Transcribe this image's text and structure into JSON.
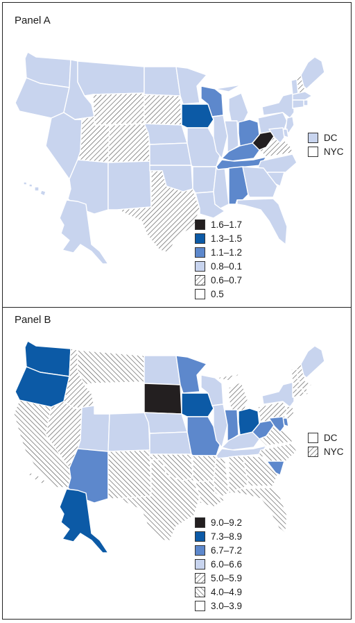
{
  "colors": {
    "very_dark": "#231f20",
    "dark_blue": "#0c5aa6",
    "medium_blue": "#5d88cc",
    "light_blue": "#c8d4ee",
    "hatch_line": "#555555",
    "white": "#ffffff"
  },
  "panels": [
    {
      "id": "A",
      "title": "Panel A",
      "legend": [
        {
          "label": "1.6–1.7",
          "fill": "very_dark"
        },
        {
          "label": "1.3–1.5",
          "fill": "dark_blue"
        },
        {
          "label": "1.1–1.2",
          "fill": "medium_blue"
        },
        {
          "label": "0.8–0.1",
          "fill": "light_blue"
        },
        {
          "label": "0.6–0.7",
          "fill": "hatch_fwd"
        },
        {
          "label": "0.5",
          "fill": "white"
        }
      ],
      "territories": [
        {
          "label": "DC",
          "fill": "light_blue"
        },
        {
          "label": "NYC",
          "fill": "white"
        }
      ],
      "states": {
        "WA": "light_blue",
        "OR": "light_blue",
        "CA": "white",
        "ID": "light_blue",
        "NV": "light_blue",
        "MT": "light_blue",
        "WY": "hatch_fwd",
        "UT": "hatch_fwd",
        "CO": "hatch_fwd",
        "AZ": "light_blue",
        "NM": "light_blue",
        "ND": "light_blue",
        "SD": "hatch_fwd",
        "NE": "light_blue",
        "KS": "light_blue",
        "OK": "light_blue",
        "TX": "hatch_fwd",
        "MN": "light_blue",
        "IA": "dark_blue",
        "MO": "light_blue",
        "AR": "light_blue",
        "LA": "light_blue",
        "WI": "medium_blue",
        "IL": "light_blue",
        "MS": "light_blue",
        "MI": "light_blue",
        "IN": "light_blue",
        "KY": "medium_blue",
        "TN": "medium_blue",
        "AL": "medium_blue",
        "OH": "medium_blue",
        "WV": "very_dark",
        "VA": "hatch_fwd",
        "NC": "light_blue",
        "SC": "light_blue",
        "GA": "light_blue",
        "FL": "light_blue",
        "PA": "light_blue",
        "NY": "light_blue",
        "VT": "light_blue",
        "NH": "hatch_fwd",
        "ME": "light_blue",
        "MA": "light_blue",
        "RI": "light_blue",
        "CT": "light_blue",
        "NJ": "light_blue",
        "DE": "light_blue",
        "MD": "light_blue",
        "AK": "light_blue",
        "HI": "light_blue"
      }
    },
    {
      "id": "B",
      "title": "Panel B",
      "legend": [
        {
          "label": "9.0–9.2",
          "fill": "very_dark"
        },
        {
          "label": "7.3–8.9",
          "fill": "dark_blue"
        },
        {
          "label": "6.7–7.2",
          "fill": "medium_blue"
        },
        {
          "label": "6.0–6.6",
          "fill": "light_blue"
        },
        {
          "label": "5.0–5.9",
          "fill": "hatch_fwd"
        },
        {
          "label": "4.0–4.9",
          "fill": "hatch_back"
        },
        {
          "label": "3.0–3.9",
          "fill": "white"
        }
      ],
      "territories": [
        {
          "label": "DC",
          "fill": "white"
        },
        {
          "label": "NYC",
          "fill": "hatch_fwd"
        }
      ],
      "states": {
        "WA": "dark_blue",
        "OR": "dark_blue",
        "CA": "hatch_back",
        "ID": "hatch_fwd",
        "NV": "hatch_fwd",
        "MT": "hatch_back",
        "WY": "white",
        "UT": "light_blue",
        "CO": "light_blue",
        "AZ": "medium_blue",
        "NM": "hatch_back",
        "ND": "light_blue",
        "SD": "very_dark",
        "NE": "light_blue",
        "KS": "light_blue",
        "OK": "hatch_back",
        "TX": "hatch_back",
        "MN": "medium_blue",
        "IA": "dark_blue",
        "MO": "medium_blue",
        "AR": "hatch_back",
        "LA": "hatch_back",
        "WI": "light_blue",
        "IL": "light_blue",
        "MS": "hatch_back",
        "MI": "hatch_fwd",
        "IN": "medium_blue",
        "KY": "light_blue",
        "TN": "light_blue",
        "AL": "hatch_back",
        "OH": "dark_blue",
        "WV": "medium_blue",
        "VA": "hatch_back",
        "NC": "hatch_back",
        "SC": "medium_blue",
        "GA": "hatch_back",
        "FL": "hatch_back",
        "PA": "hatch_fwd",
        "NY": "light_blue",
        "VT": "hatch_fwd",
        "NH": "hatch_fwd",
        "ME": "light_blue",
        "MA": "hatch_fwd",
        "RI": "hatch_fwd",
        "CT": "hatch_fwd",
        "NJ": "hatch_fwd",
        "DE": "medium_blue",
        "MD": "medium_blue",
        "AK": "dark_blue",
        "HI": "hatch_fwd"
      }
    }
  ]
}
